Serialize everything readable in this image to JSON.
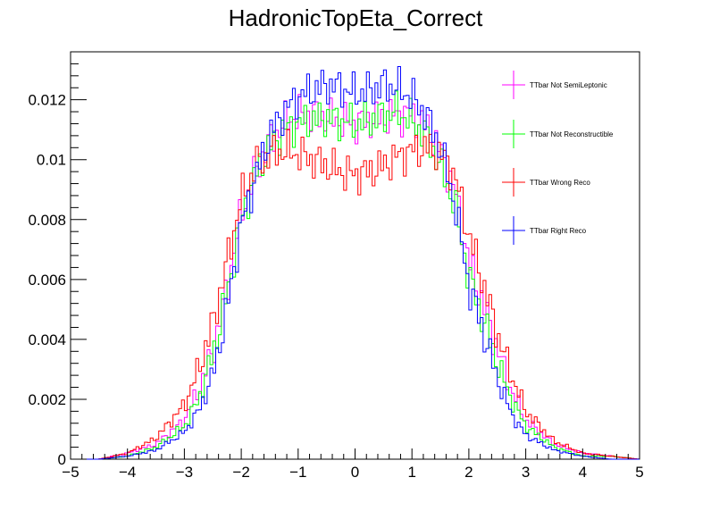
{
  "chart_data": {
    "type": "line",
    "subtype": "step-histogram",
    "title": "HadronicTopEta_Correct",
    "xlabel": "",
    "ylabel": "",
    "xlim": [
      -5,
      5
    ],
    "ylim": [
      0,
      0.0136
    ],
    "x_ticks": [
      "−5",
      "−4",
      "−3",
      "−2",
      "−1",
      "0",
      "1",
      "2",
      "3",
      "4",
      "5"
    ],
    "y_ticks": [
      "0",
      "0.002",
      "0.004",
      "0.006",
      "0.008",
      "0.01",
      "0.012"
    ],
    "y_tick_values": [
      0,
      0.002,
      0.004,
      0.006,
      0.008,
      0.01,
      0.012
    ],
    "bins": 200,
    "grid": false,
    "legend_placement": "top-right",
    "x": [
      -4.5,
      -4.0,
      -3.5,
      -3.0,
      -2.75,
      -2.5,
      -2.25,
      -2.0,
      -1.75,
      -1.5,
      -1.25,
      -1.0,
      -0.75,
      -0.5,
      -0.25,
      0.0,
      0.25,
      0.5,
      0.75,
      1.0,
      1.25,
      1.5,
      1.75,
      2.0,
      2.25,
      2.5,
      2.75,
      3.0,
      3.5,
      4.0,
      4.5,
      5.0
    ],
    "series": [
      {
        "name": "TTbar Not SemiLeptonic",
        "color": "#ff00ff",
        "values": [
          0.0,
          0.0002,
          0.0005,
          0.0013,
          0.0023,
          0.0036,
          0.0057,
          0.0082,
          0.0096,
          0.0106,
          0.0112,
          0.0115,
          0.0115,
          0.0114,
          0.0113,
          0.0112,
          0.0113,
          0.0114,
          0.0115,
          0.0115,
          0.0111,
          0.0103,
          0.009,
          0.0066,
          0.0052,
          0.0037,
          0.0023,
          0.0013,
          0.0005,
          0.0002,
          0.0001,
          0.0
        ]
      },
      {
        "name": "TTbar Not Reconstructible",
        "color": "#00ff00",
        "values": [
          0.0,
          0.0001,
          0.0004,
          0.0011,
          0.002,
          0.0035,
          0.0055,
          0.008,
          0.0095,
          0.0104,
          0.011,
          0.0112,
          0.0113,
          0.0114,
          0.0113,
          0.0112,
          0.0113,
          0.0115,
          0.0116,
          0.0113,
          0.0108,
          0.0098,
          0.0085,
          0.0061,
          0.0047,
          0.0032,
          0.002,
          0.0011,
          0.0004,
          0.0001,
          0.0001,
          0.0
        ]
      },
      {
        "name": "TTbar Wrong Reco",
        "color": "#ff0000",
        "values": [
          0.0,
          0.0002,
          0.0007,
          0.0018,
          0.003,
          0.0045,
          0.0066,
          0.0087,
          0.0098,
          0.0102,
          0.0103,
          0.0102,
          0.01,
          0.0098,
          0.0096,
          0.0095,
          0.0096,
          0.0098,
          0.0101,
          0.0103,
          0.0104,
          0.0102,
          0.0095,
          0.0075,
          0.0059,
          0.0042,
          0.0028,
          0.0016,
          0.0006,
          0.0002,
          0.0001,
          0.0
        ]
      },
      {
        "name": "TTbar Right Reco",
        "color": "#0000ff",
        "values": [
          0.0,
          0.0001,
          0.0003,
          0.0009,
          0.0016,
          0.0028,
          0.005,
          0.0078,
          0.0094,
          0.0108,
          0.0116,
          0.0121,
          0.0123,
          0.0125,
          0.0124,
          0.0122,
          0.0123,
          0.0125,
          0.0124,
          0.0121,
          0.0115,
          0.0104,
          0.0086,
          0.0058,
          0.0043,
          0.0027,
          0.0015,
          0.0008,
          0.0003,
          0.0001,
          0.0,
          0.0
        ]
      }
    ]
  }
}
